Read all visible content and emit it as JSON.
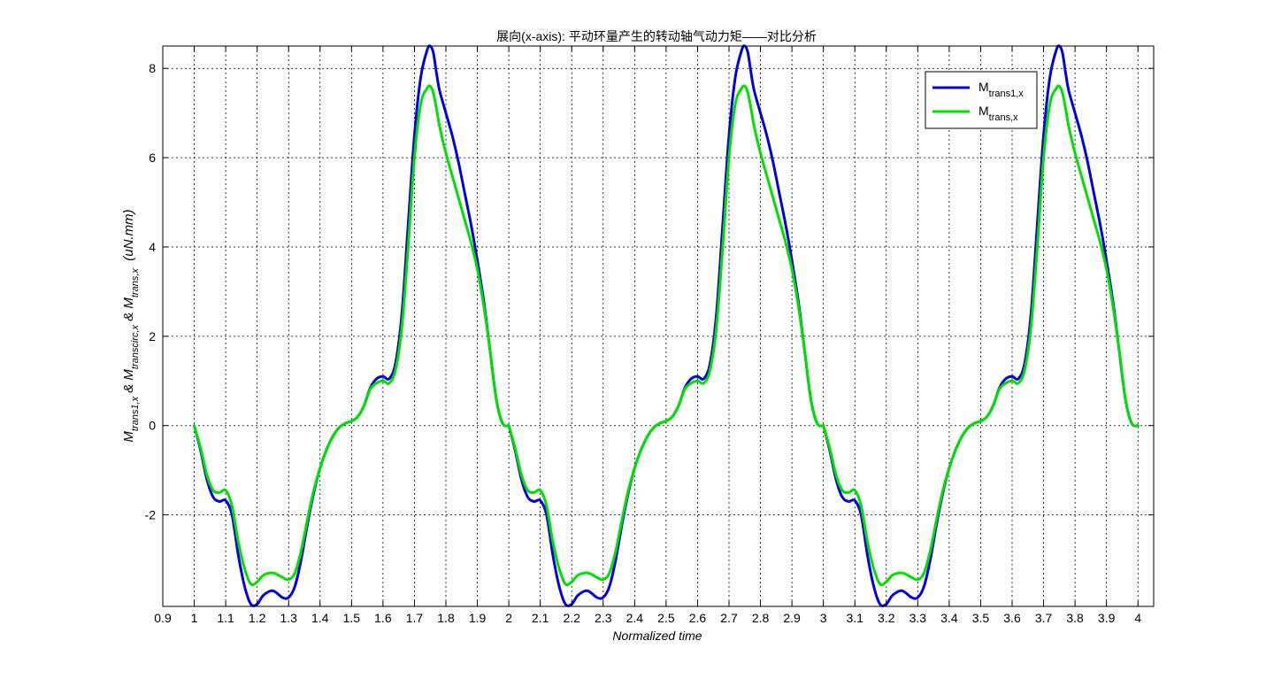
{
  "chart_data": {
    "type": "line",
    "title": "展向(x-axis): 平动环量产生的转动轴气动力矩——对比分析",
    "xlabel": "Normalized time",
    "ylabel": {
      "prefix": "M",
      "sub1": "trans1,x",
      "amp1": " & M",
      "sub2": "transcirc,x",
      "amp2": " & M",
      "sub3": "trans,x",
      "unit": "  (uN.mm)"
    },
    "xlim": [
      0.9,
      4.05
    ],
    "ylim": [
      -4.05,
      8.5
    ],
    "xticks": [
      0.9,
      1,
      1.1,
      1.2,
      1.3,
      1.4,
      1.5,
      1.6,
      1.7,
      1.8,
      1.9,
      2,
      2.1,
      2.2,
      2.3,
      2.4,
      2.5,
      2.6,
      2.7,
      2.8,
      2.9,
      3,
      3.1,
      3.2,
      3.3,
      3.4,
      3.5,
      3.6,
      3.7,
      3.8,
      3.9,
      4
    ],
    "xtick_labels": [
      "0.9",
      "1",
      "1.1",
      "1.2",
      "1.3",
      "1.4",
      "1.5",
      "1.6",
      "1.7",
      "1.8",
      "1.9",
      "2",
      "2.1",
      "2.2",
      "2.3",
      "2.4",
      "2.5",
      "2.6",
      "2.7",
      "2.8",
      "2.9",
      "3",
      "3.1",
      "3.2",
      "3.3",
      "3.4",
      "3.5",
      "3.6",
      "3.7",
      "3.8",
      "3.9",
      "4"
    ],
    "yticks": [
      -2,
      0,
      2,
      4,
      6,
      8
    ],
    "ytick_labels": [
      "-2",
      "0",
      "2",
      "4",
      "6",
      "8"
    ],
    "grid": true,
    "legend_position": "top-right",
    "series": [
      {
        "name": "M",
        "name_sub": "trans1,x",
        "color": "#0000dd",
        "cycle_x": [
          0.0,
          0.02,
          0.04,
          0.06,
          0.08,
          0.1,
          0.12,
          0.14,
          0.16,
          0.18,
          0.2,
          0.22,
          0.25,
          0.28,
          0.3,
          0.32,
          0.34,
          0.36,
          0.38,
          0.4,
          0.42,
          0.44,
          0.46,
          0.48,
          0.5,
          0.52,
          0.54,
          0.56,
          0.58,
          0.6,
          0.62,
          0.64,
          0.66,
          0.68,
          0.7,
          0.72,
          0.74,
          0.75,
          0.76,
          0.77,
          0.78,
          0.8,
          0.82,
          0.84,
          0.86,
          0.88,
          0.9,
          0.92,
          0.94,
          0.96,
          0.98,
          1.0
        ],
        "cycle_y": [
          0.0,
          -0.55,
          -1.2,
          -1.6,
          -1.7,
          -1.68,
          -2.0,
          -2.9,
          -3.6,
          -4.0,
          -4.0,
          -3.8,
          -3.7,
          -3.85,
          -3.85,
          -3.6,
          -3.0,
          -2.2,
          -1.5,
          -0.95,
          -0.55,
          -0.25,
          -0.05,
          0.05,
          0.1,
          0.2,
          0.45,
          0.85,
          1.05,
          1.1,
          1.05,
          1.4,
          2.5,
          4.5,
          6.5,
          7.8,
          8.4,
          8.5,
          8.35,
          7.9,
          7.5,
          7.0,
          6.5,
          5.9,
          5.2,
          4.5,
          3.7,
          2.8,
          1.7,
          0.6,
          0.05,
          0.0
        ]
      },
      {
        "name": "M",
        "name_sub": "trans,x",
        "color": "#00e000",
        "cycle_x": [
          0.0,
          0.02,
          0.04,
          0.06,
          0.08,
          0.1,
          0.12,
          0.14,
          0.16,
          0.18,
          0.2,
          0.22,
          0.25,
          0.28,
          0.3,
          0.32,
          0.34,
          0.36,
          0.38,
          0.4,
          0.42,
          0.44,
          0.46,
          0.48,
          0.5,
          0.52,
          0.54,
          0.56,
          0.58,
          0.6,
          0.62,
          0.64,
          0.66,
          0.68,
          0.7,
          0.72,
          0.74,
          0.75,
          0.76,
          0.77,
          0.78,
          0.8,
          0.82,
          0.84,
          0.86,
          0.88,
          0.9,
          0.92,
          0.94,
          0.96,
          0.98,
          1.0
        ],
        "cycle_y": [
          0.0,
          -0.5,
          -1.1,
          -1.45,
          -1.5,
          -1.45,
          -1.8,
          -2.6,
          -3.2,
          -3.55,
          -3.5,
          -3.35,
          -3.3,
          -3.4,
          -3.45,
          -3.3,
          -2.8,
          -2.1,
          -1.45,
          -0.95,
          -0.55,
          -0.25,
          -0.05,
          0.05,
          0.1,
          0.2,
          0.45,
          0.82,
          0.95,
          1.0,
          0.95,
          1.25,
          2.2,
          4.0,
          6.0,
          7.2,
          7.55,
          7.6,
          7.45,
          7.1,
          6.7,
          6.1,
          5.6,
          5.1,
          4.6,
          4.1,
          3.5,
          2.7,
          1.7,
          0.6,
          0.05,
          0.0
        ]
      }
    ],
    "cycle_starts": [
      1,
      2,
      3
    ]
  }
}
